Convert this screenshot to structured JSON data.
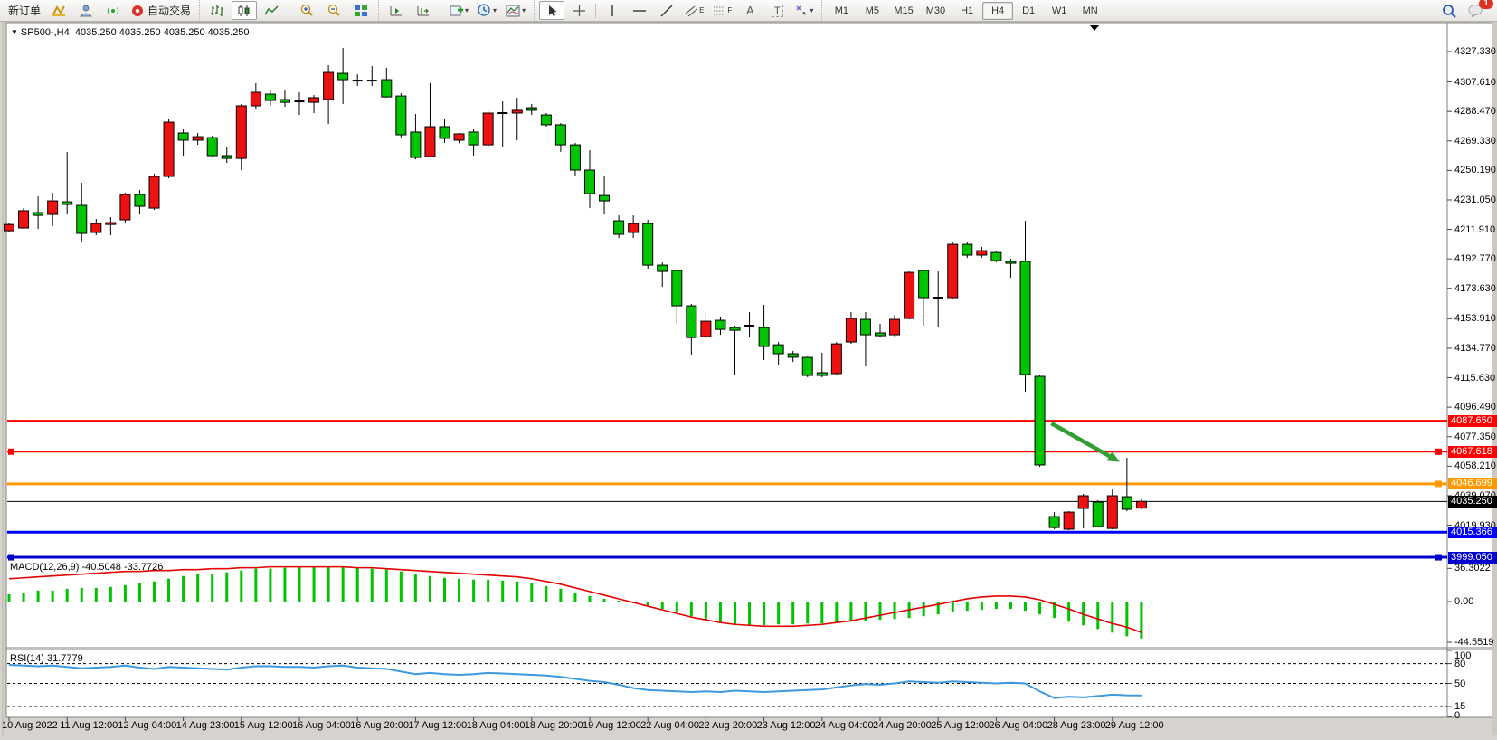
{
  "toolbar": {
    "new_order": "新订单",
    "auto_trading": "自动交易",
    "text_tool": "A",
    "channel_tool_mark": "E",
    "fibo_tool_mark": "F",
    "label_tool": "T",
    "timeframes": [
      "M1",
      "M5",
      "M15",
      "M30",
      "H1",
      "H4",
      "D1",
      "W1",
      "MN"
    ],
    "active_timeframe": "H4",
    "notification_badge": "1",
    "dropdown_marker": "▾"
  },
  "chart_header": {
    "dropdown_marker": "▼",
    "symbol_title": "SP500-,H4",
    "ohlc_text": "4035.250 4035.250 4035.250 4035.250"
  },
  "price_axis": {
    "ticks": [
      "4327.330",
      "4307.610",
      "4288.470",
      "4269.330",
      "4250.190",
      "4231.050",
      "4211.910",
      "4192.770",
      "4173.630",
      "4153.910",
      "4134.770",
      "4115.630",
      "4096.490",
      "4077.350",
      "4058.210",
      "4039.070",
      "4019.930"
    ]
  },
  "time_axis": {
    "labels": [
      "10 Aug 2022",
      "11 Aug 12:00",
      "12 Aug 04:00",
      "14 Aug 23:00",
      "15 Aug 12:00",
      "16 Aug 04:00",
      "16 Aug 20:00",
      "17 Aug 12:00",
      "18 Aug 04:00",
      "18 Aug 20:00",
      "19 Aug 12:00",
      "22 Aug 04:00",
      "22 Aug 20:00",
      "23 Aug 12:00",
      "24 Aug 04:00",
      "24 Aug 20:00",
      "25 Aug 12:00",
      "26 Aug 04:00",
      "28 Aug 23:00",
      "29 Aug 12:00"
    ]
  },
  "hlines": [
    {
      "price": 4087.65,
      "label": "4087.650",
      "color": "#ff0000",
      "thickness": 2,
      "squares": []
    },
    {
      "price": 4067.618,
      "label": "4067.618",
      "color": "#ff0000",
      "thickness": 2,
      "squares": [
        "left",
        "right"
      ]
    },
    {
      "price": 4046.699,
      "label": "4046.699",
      "color": "#ff9900",
      "thickness": 3,
      "squares": [
        "right"
      ]
    },
    {
      "price": 4035.25,
      "label": "4035.250",
      "color": "#000000",
      "thickness": 1,
      "squares": []
    },
    {
      "price": 4015.366,
      "label": "4015.366",
      "color": "#0000ff",
      "thickness": 3,
      "squares": []
    },
    {
      "price": 3999.05,
      "label": "3999.050",
      "color": "#0000cd",
      "thickness": 3,
      "squares": [
        "left",
        "right"
      ]
    }
  ],
  "indicators": {
    "macd": {
      "label": "MACD(12,26,9) -40.5048 -33.7726",
      "scale_labels": [
        "36.3022",
        "0.00",
        "-44.5519"
      ],
      "scale_values": [
        36.3022,
        0,
        -44.5519
      ]
    },
    "rsi": {
      "label": "RSI(14) 31.7779",
      "scale_labels": [
        "100",
        "80",
        "50",
        "15",
        "0"
      ],
      "scale_values": [
        100,
        80,
        50,
        15,
        0
      ],
      "level_lines": [
        80,
        50,
        15
      ],
      "current": 31.7779
    }
  },
  "chart_data": {
    "type": "candlestick",
    "title": "SP500-,H4",
    "timeframe": "H4",
    "ylim": [
      3992,
      4332
    ],
    "legend_position": "none",
    "grid": false,
    "candles_ohlc": [
      [
        4211.0,
        4216.3,
        4209.9,
        4215.1
      ],
      [
        4212.8,
        4225.7,
        4212.2,
        4224.0
      ],
      [
        4222.8,
        4233.3,
        4212.2,
        4221.0
      ],
      [
        4221.6,
        4235.7,
        4214.0,
        4230.4
      ],
      [
        4229.8,
        4262.1,
        4221.6,
        4228.1
      ],
      [
        4227.5,
        4242.2,
        4203.4,
        4209.3
      ],
      [
        4209.9,
        4218.7,
        4208.1,
        4215.7
      ],
      [
        4215.1,
        4219.9,
        4208.1,
        4216.3
      ],
      [
        4218.1,
        4235.7,
        4215.7,
        4234.5
      ],
      [
        4234.5,
        4237.5,
        4221.6,
        4226.9
      ],
      [
        4225.7,
        4248.0,
        4224.5,
        4246.3
      ],
      [
        4246.3,
        4283.3,
        4245.1,
        4281.5
      ],
      [
        4274.5,
        4276.8,
        4259.8,
        4269.8
      ],
      [
        4269.8,
        4274.5,
        4266.8,
        4272.1
      ],
      [
        4271.5,
        4272.7,
        4259.2,
        4259.8
      ],
      [
        4259.8,
        4265.7,
        4255.1,
        4258.0
      ],
      [
        4258.0,
        4293.3,
        4250.4,
        4292.1
      ],
      [
        4292.1,
        4306.8,
        4290.3,
        4300.9
      ],
      [
        4299.7,
        4302.1,
        4292.1,
        4295.6
      ],
      [
        4296.2,
        4302.1,
        4291.5,
        4294.4
      ],
      [
        4295.0,
        4300.9,
        4286.2,
        4295.0
      ],
      [
        4294.4,
        4299.1,
        4287.4,
        4297.4
      ],
      [
        4296.2,
        4318.5,
        4280.3,
        4313.8
      ],
      [
        4313.2,
        4329.7,
        4293.3,
        4309.1
      ],
      [
        4308.5,
        4312.6,
        4305.0,
        4308.5
      ],
      [
        4308.5,
        4317.9,
        4305.0,
        4308.5
      ],
      [
        4309.1,
        4316.8,
        4297.4,
        4297.9
      ],
      [
        4298.5,
        4300.3,
        4271.5,
        4273.3
      ],
      [
        4275.1,
        4286.8,
        4257.4,
        4258.6
      ],
      [
        4259.2,
        4306.8,
        4259.2,
        4278.6
      ],
      [
        4278.6,
        4283.3,
        4268.0,
        4271.0
      ],
      [
        4269.8,
        4274.5,
        4268.0,
        4273.9
      ],
      [
        4275.1,
        4276.8,
        4259.8,
        4266.8
      ],
      [
        4266.8,
        4288.6,
        4265.1,
        4287.4
      ],
      [
        4287.4,
        4295.0,
        4265.7,
        4287.4
      ],
      [
        4287.4,
        4297.4,
        4269.8,
        4289.2
      ],
      [
        4290.9,
        4293.3,
        4286.2,
        4289.2
      ],
      [
        4286.2,
        4287.4,
        4278.6,
        4279.8
      ],
      [
        4279.8,
        4280.9,
        4262.2,
        4266.8
      ],
      [
        4266.8,
        4268.0,
        4246.3,
        4250.4
      ],
      [
        4250.4,
        4263.3,
        4225.7,
        4235.1
      ],
      [
        4233.9,
        4246.3,
        4221.6,
        4230.4
      ],
      [
        4217.5,
        4221.0,
        4206.3,
        4208.7
      ],
      [
        4209.9,
        4221.0,
        4206.3,
        4215.7
      ],
      [
        4215.7,
        4218.1,
        4186.4,
        4188.7
      ],
      [
        4188.7,
        4190.5,
        4174.6,
        4184.6
      ],
      [
        4185.2,
        4185.8,
        4150.6,
        4162.3
      ],
      [
        4162.3,
        4163.5,
        4130.6,
        4141.7
      ],
      [
        4142.3,
        4158.2,
        4141.7,
        4152.3
      ],
      [
        4152.9,
        4155.3,
        4143.5,
        4147.0
      ],
      [
        4148.2,
        4149.4,
        4117.1,
        4146.4
      ],
      [
        4149.4,
        4158.2,
        4142.3,
        4149.4
      ],
      [
        4148.2,
        4162.9,
        4127.1,
        4135.9
      ],
      [
        4137.0,
        4138.8,
        4124.1,
        4131.2
      ],
      [
        4131.2,
        4133.0,
        4125.9,
        4128.9
      ],
      [
        4128.8,
        4130.0,
        4115.9,
        4117.1
      ],
      [
        4118.9,
        4131.8,
        4115.9,
        4117.1
      ],
      [
        4118.3,
        4138.8,
        4117.1,
        4137.6
      ],
      [
        4138.8,
        4158.2,
        4137.6,
        4154.1
      ],
      [
        4153.5,
        4158.2,
        4123.0,
        4143.5
      ],
      [
        4144.7,
        4150.6,
        4141.7,
        4142.9
      ],
      [
        4143.5,
        4156.4,
        4142.3,
        4153.5
      ],
      [
        4154.1,
        4184.6,
        4153.5,
        4184.0
      ],
      [
        4185.2,
        4185.2,
        4149.4,
        4167.6
      ],
      [
        4167.6,
        4184.6,
        4148.8,
        4167.6
      ],
      [
        4167.6,
        4203.4,
        4167.0,
        4202.2
      ],
      [
        4202.2,
        4203.4,
        4193.4,
        4195.2
      ],
      [
        4195.2,
        4200.5,
        4193.4,
        4198.1
      ],
      [
        4196.9,
        4198.1,
        4190.5,
        4191.6
      ],
      [
        4191.1,
        4192.8,
        4180.5,
        4189.9
      ],
      [
        4191.1,
        4217.5,
        4106.5,
        4117.7
      ],
      [
        4116.5,
        4117.7,
        4057.8,
        4059.0
      ],
      [
        4025.5,
        4028.4,
        4017.3,
        4018.4
      ],
      [
        4017.3,
        4029.0,
        4016.7,
        4028.4
      ],
      [
        4030.8,
        4040.2,
        4017.8,
        4039.0
      ],
      [
        4034.9,
        4036.1,
        4018.4,
        4019.0
      ],
      [
        4017.8,
        4043.7,
        4017.3,
        4039.0
      ],
      [
        4038.4,
        4063.7,
        4029.0,
        4030.2
      ],
      [
        4031.0,
        4036.7,
        4030.2,
        4035.3
      ]
    ],
    "black_doji_indices": [
      20,
      24,
      25,
      34,
      51,
      64
    ],
    "up_color": "#ee1111",
    "down_color": "#00c400",
    "macd_histogram": [
      8,
      10,
      12,
      12,
      14,
      15,
      15,
      16,
      18,
      20,
      22,
      25,
      28,
      30,
      30,
      32,
      34,
      36,
      36,
      37,
      38,
      38,
      38,
      38,
      37,
      36,
      35,
      33,
      30,
      28,
      26,
      25,
      24,
      24,
      23,
      22,
      20,
      17,
      14,
      10,
      6,
      3,
      1,
      -2,
      -5,
      -8,
      -12,
      -16,
      -20,
      -23,
      -25,
      -26,
      -26,
      -25,
      -25,
      -24,
      -24,
      -23,
      -22,
      -21,
      -20,
      -19,
      -18,
      -16,
      -14,
      -12,
      -10,
      -9,
      -8,
      -8,
      -10,
      -14,
      -18,
      -22,
      -26,
      -30,
      -34,
      -38,
      -40.5
    ],
    "macd_signal": [
      25,
      26,
      27,
      28,
      29,
      30,
      31,
      32,
      33,
      33,
      34,
      34,
      35,
      35,
      36,
      36,
      37,
      37,
      38,
      38,
      38,
      38,
      38,
      38,
      37,
      37,
      36,
      35,
      34,
      33,
      32,
      31,
      30,
      29,
      28,
      27,
      25,
      22,
      19,
      15,
      11,
      7,
      3,
      -1,
      -5,
      -9,
      -13,
      -17,
      -20,
      -23,
      -25,
      -26,
      -27,
      -27,
      -27,
      -26,
      -25,
      -23,
      -21,
      -18,
      -15,
      -12,
      -9,
      -6,
      -3,
      0,
      3,
      5,
      6,
      6,
      5,
      2,
      -3,
      -8,
      -14,
      -19,
      -24,
      -28,
      -33.8
    ],
    "rsi_values": [
      78,
      77,
      76,
      77,
      75,
      73,
      74,
      75,
      77,
      74,
      72,
      75,
      74,
      73,
      72,
      71,
      74,
      76,
      76,
      75,
      75,
      74,
      76,
      77,
      74,
      73,
      72,
      68,
      64,
      66,
      64,
      63,
      64,
      66,
      65,
      64,
      63,
      62,
      60,
      57,
      54,
      52,
      48,
      43,
      40,
      39,
      38,
      37,
      38,
      37,
      39,
      38,
      37,
      38,
      39,
      40,
      41,
      44,
      47,
      49,
      48,
      50,
      53,
      52,
      51,
      53,
      52,
      51,
      50,
      51,
      50,
      38,
      28,
      30,
      29,
      31,
      33,
      32,
      31.8
    ]
  },
  "annotations": {
    "arrow": {
      "from_index": 71.8,
      "from_price": 4086.0,
      "to_index": 76.5,
      "to_price": 4061.0,
      "color": "#2f9e33"
    }
  }
}
